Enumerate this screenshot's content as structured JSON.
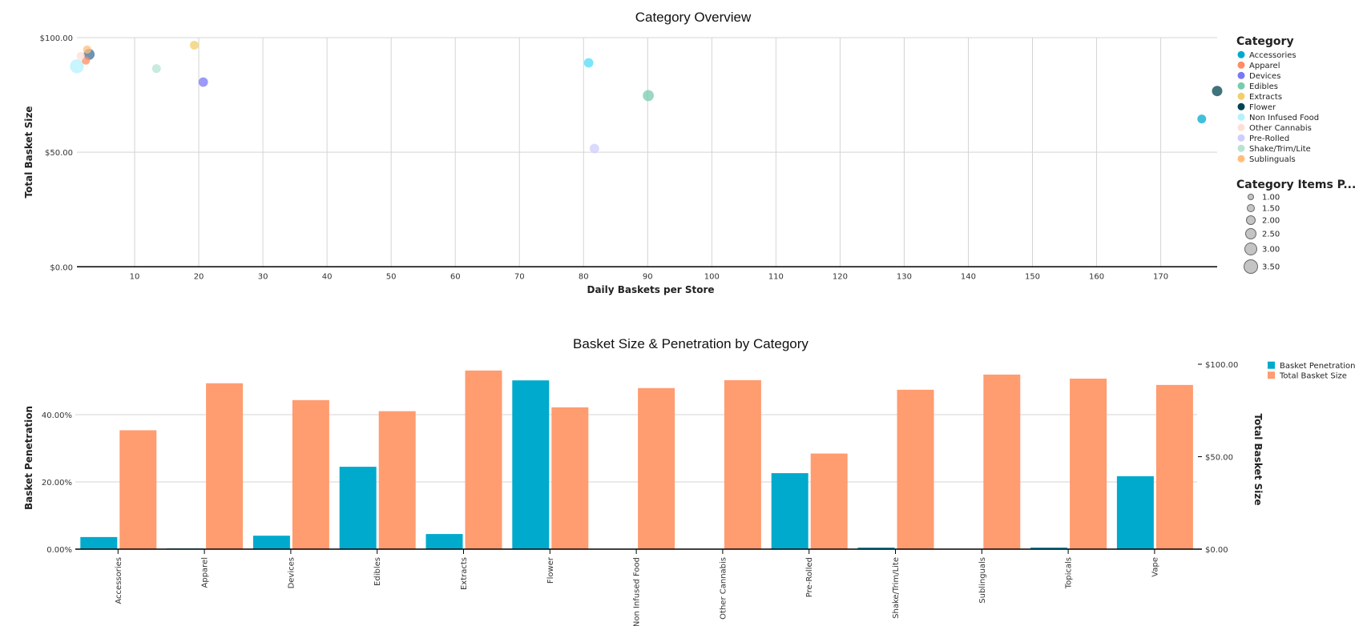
{
  "chart_data": [
    {
      "type": "scatter",
      "title": "Category Overview",
      "xlabel": "Daily Baskets per Store",
      "ylabel": "Total Basket Size",
      "xlim": [
        1,
        178.8
      ],
      "ylim": [
        0,
        100
      ],
      "x_ticks": [
        "10",
        "20",
        "30",
        "40",
        "50",
        "60",
        "70",
        "80",
        "90",
        "100",
        "110",
        "120",
        "130",
        "140",
        "150",
        "160",
        "170"
      ],
      "y_ticks": [
        "$0.00",
        "$50.00",
        "$100.00"
      ],
      "grid": true,
      "legend_position": "right",
      "color_legend_title": "Category",
      "size_legend_title": "Category Items P...",
      "size_legend": [
        "1.00",
        "1.50",
        "2.00",
        "2.50",
        "3.00",
        "3.50"
      ],
      "categories": [
        {
          "name": "Accessories",
          "color": "#00a9cf"
        },
        {
          "name": "Apparel",
          "color": "#ff8c62"
        },
        {
          "name": "Devices",
          "color": "#7a78f5"
        },
        {
          "name": "Edibles",
          "color": "#79cbae"
        },
        {
          "name": "Extracts",
          "color": "#f2cf69"
        },
        {
          "name": "Flower",
          "color": "#00444f"
        },
        {
          "name": "Non Infused Food",
          "color": "#b5f1fd"
        },
        {
          "name": "Other Cannabis",
          "color": "#ffdfd5"
        },
        {
          "name": "Pre-Rolled",
          "color": "#cfcdfb"
        },
        {
          "name": "Shake/Trim/Lite",
          "color": "#b7e3d4"
        },
        {
          "name": "Sublinguals",
          "color": "#ffbe7b"
        }
      ],
      "points": [
        {
          "category": "Accessories",
          "x": 176.4,
          "y": 64.5,
          "size": 2.0,
          "color": "#00a9cf"
        },
        {
          "category": "Apparel",
          "x": 2.4,
          "y": 90.0,
          "size": 1.8,
          "color": "#ff8c62"
        },
        {
          "category": "Devices",
          "x": 20.7,
          "y": 80.6,
          "size": 2.2,
          "color": "#7a78f5"
        },
        {
          "category": "Edibles",
          "x": 90.1,
          "y": 74.7,
          "size": 2.7,
          "color": "#79cbae"
        },
        {
          "category": "Extracts",
          "x": 19.3,
          "y": 96.7,
          "size": 2.0,
          "color": "#f2cf69"
        },
        {
          "category": "Flower",
          "x": 178.8,
          "y": 76.7,
          "size": 2.5,
          "color": "#00444f"
        },
        {
          "category": "Non Infused Food",
          "x": 1.0,
          "y": 87.5,
          "size": 3.6,
          "color": "#b5f1fd"
        },
        {
          "category": "Other Cannabis",
          "x": 1.6,
          "y": 92.0,
          "size": 1.8,
          "color": "#ffdfd5"
        },
        {
          "category": "Pre-Rolled",
          "x": 81.7,
          "y": 51.6,
          "size": 2.2,
          "color": "#cfcdfb"
        },
        {
          "category": "Shake/Trim/Lite",
          "x": 13.4,
          "y": 86.5,
          "size": 2.0,
          "color": "#b7e3d4"
        },
        {
          "category": "Sublinguals",
          "x": 2.6,
          "y": 94.8,
          "size": 1.8,
          "color": "#ffbe7b"
        },
        {
          "category": "Topicals",
          "x": 2.9,
          "y": 92.7,
          "size": 2.7,
          "color": "#3f6f9a"
        },
        {
          "category": "Vape",
          "x": 80.8,
          "y": 89.0,
          "size": 2.2,
          "color": "#4fdcf7"
        }
      ]
    },
    {
      "type": "bar",
      "title": "Basket Size & Penetration by Category",
      "ylabel": "Basket Penetration",
      "ylabel_right": "Total Basket Size",
      "ylim": [
        0,
        55
      ],
      "ylim_right": [
        0,
        100
      ],
      "y_ticks": [
        "0.00%",
        "20.00%",
        "40.00%"
      ],
      "y_ticks_right": [
        "$0.00",
        "$50.00",
        "$100.00"
      ],
      "grid": true,
      "legend_position": "top-right",
      "categories": [
        "Accessories",
        "Apparel",
        "Devices",
        "Edibles",
        "Extracts",
        "Flower",
        "Non Infused Food",
        "Other Cannabis",
        "Pre-Rolled",
        "Shake/Trim/Lite",
        "Sublinguals",
        "Topicals",
        "Vape"
      ],
      "series": [
        {
          "name": "Basket Penetration",
          "axis": "left",
          "unit": "%",
          "color": "#00aacd",
          "values": [
            3.6,
            0.2,
            4.0,
            24.5,
            4.5,
            50.2,
            0.1,
            0.1,
            22.6,
            0.5,
            0.1,
            0.5,
            21.7
          ]
        },
        {
          "name": "Total Basket Size",
          "axis": "right",
          "unit": "$",
          "color": "#ff9c70",
          "values": [
            64.3,
            89.7,
            80.6,
            74.6,
            96.6,
            76.7,
            87.1,
            91.4,
            51.7,
            86.2,
            94.4,
            92.2,
            88.8
          ]
        }
      ]
    }
  ]
}
